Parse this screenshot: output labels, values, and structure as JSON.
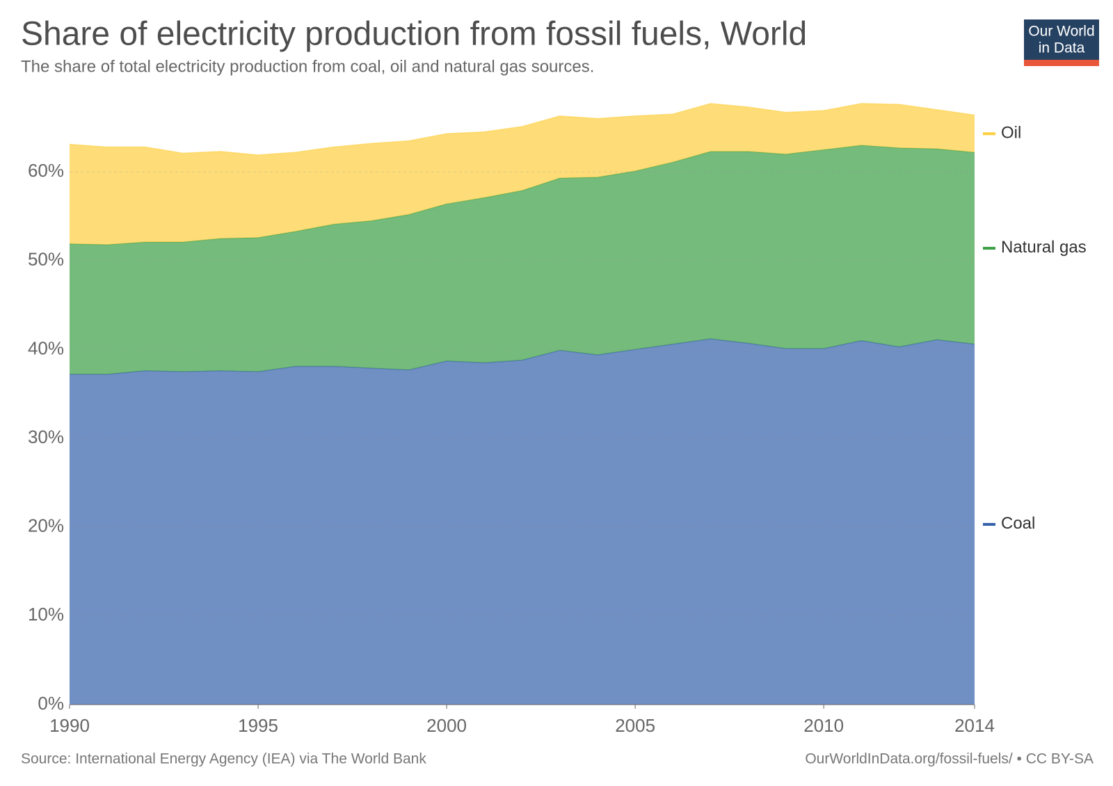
{
  "chart_data": {
    "type": "stacked_area",
    "title": "Share of electricity production from fossil fuels, World",
    "subtitle": "The share of total electricity production from coal, oil and natural gas sources.",
    "source": "Source: International Energy Agency (IEA) via The World Bank",
    "credit": "OurWorldInData.org/fossil-fuels/ • CC BY-SA",
    "logo": {
      "line1": "Our World",
      "line2": "in Data"
    },
    "x": [
      1990,
      1991,
      1992,
      1993,
      1994,
      1995,
      1996,
      1997,
      1998,
      1999,
      2000,
      2001,
      2002,
      2003,
      2004,
      2005,
      2006,
      2007,
      2008,
      2009,
      2010,
      2011,
      2012,
      2013,
      2014
    ],
    "xlim": [
      1990,
      2014
    ],
    "xticks": [
      1990,
      1995,
      2000,
      2005,
      2010,
      2014
    ],
    "ylim": [
      0,
      68
    ],
    "yticks": [
      {
        "value": 0,
        "label": "0%"
      },
      {
        "value": 10,
        "label": "10%"
      },
      {
        "value": 20,
        "label": "20%"
      },
      {
        "value": 30,
        "label": "30%"
      },
      {
        "value": 40,
        "label": "40%"
      },
      {
        "value": 50,
        "label": "50%"
      },
      {
        "value": 60,
        "label": "60%"
      }
    ],
    "grid": true,
    "series": [
      {
        "name": "Coal",
        "color": "#3360a9",
        "values": [
          37.2,
          37.2,
          37.6,
          37.5,
          37.6,
          37.5,
          38.1,
          38.1,
          37.9,
          37.7,
          38.7,
          38.5,
          38.8,
          39.9,
          39.4,
          40.0,
          40.6,
          41.2,
          40.7,
          40.1,
          40.1,
          41.0,
          40.3,
          41.1,
          40.6
        ]
      },
      {
        "name": "Natural gas",
        "color": "#3a9e44",
        "values": [
          14.7,
          14.6,
          14.5,
          14.6,
          14.9,
          15.1,
          15.2,
          16.0,
          16.6,
          17.5,
          17.7,
          18.6,
          19.1,
          19.4,
          20.0,
          20.1,
          20.5,
          21.1,
          21.6,
          21.9,
          22.4,
          22.0,
          22.4,
          21.5,
          21.6
        ]
      },
      {
        "name": "Oil",
        "color": "#fdcf3f",
        "values": [
          11.2,
          11.0,
          10.7,
          10.0,
          9.8,
          9.3,
          8.9,
          8.7,
          8.7,
          8.3,
          7.9,
          7.4,
          7.2,
          7.0,
          6.6,
          6.2,
          5.4,
          5.4,
          5.0,
          4.7,
          4.4,
          4.7,
          4.9,
          4.4,
          4.2
        ]
      }
    ]
  }
}
